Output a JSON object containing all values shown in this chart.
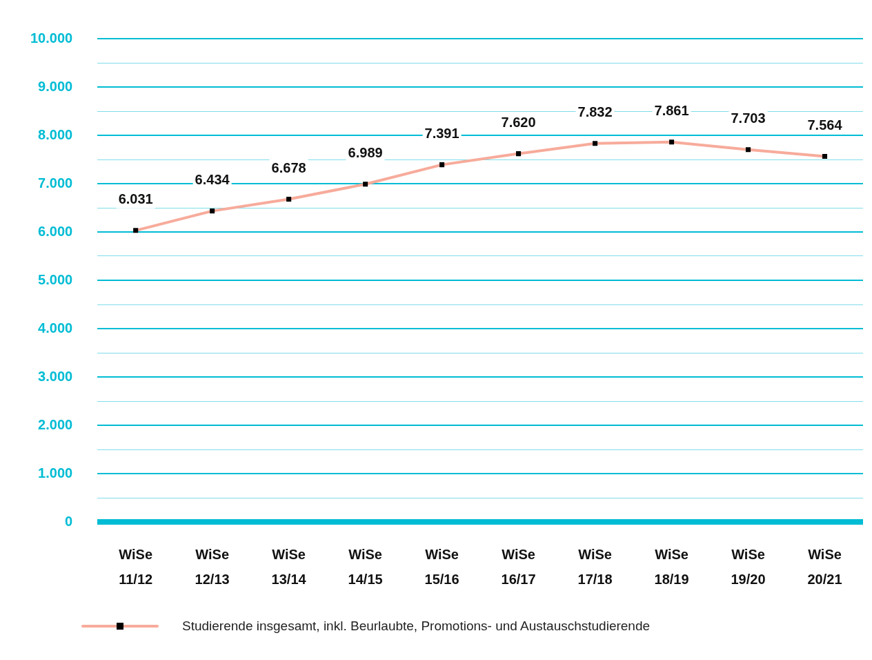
{
  "chart_data": {
    "type": "line",
    "categories": [
      "WiSe 11/12",
      "WiSe 12/13",
      "WiSe 13/14",
      "WiSe 14/15",
      "WiSe 15/16",
      "WiSe 16/17",
      "WiSe 17/18",
      "WiSe 18/19",
      "WiSe 19/20",
      "WiSe 20/21"
    ],
    "series": [
      {
        "name": "Studierende insgesamt, inkl. Beurlaubte, Promotions- und Austauschstudierende",
        "color": "#f7ab9b",
        "values": [
          6031,
          6434,
          6678,
          6989,
          7391,
          7620,
          7832,
          7861,
          7703,
          7564
        ],
        "value_labels": [
          "6.031",
          "6.434",
          "6.678",
          "6.989",
          "7.391",
          "7.620",
          "7.832",
          "7.861",
          "7.703",
          "7.564"
        ]
      }
    ],
    "ylim": [
      0,
      10000
    ],
    "yticks": [
      {
        "value": 0,
        "label": "0"
      },
      {
        "value": 500,
        "label": null
      },
      {
        "value": 1000,
        "label": "1.000"
      },
      {
        "value": 1500,
        "label": null
      },
      {
        "value": 2000,
        "label": "2.000"
      },
      {
        "value": 2500,
        "label": null
      },
      {
        "value": 3000,
        "label": "3.000"
      },
      {
        "value": 3500,
        "label": null
      },
      {
        "value": 4000,
        "label": "4.000"
      },
      {
        "value": 4500,
        "label": null
      },
      {
        "value": 5000,
        "label": "5.000"
      },
      {
        "value": 5500,
        "label": null
      },
      {
        "value": 6000,
        "label": "6.000"
      },
      {
        "value": 6500,
        "label": null
      },
      {
        "value": 7000,
        "label": "7.000"
      },
      {
        "value": 7500,
        "label": null
      },
      {
        "value": 8000,
        "label": "8.000"
      },
      {
        "value": 8500,
        "label": null
      },
      {
        "value": 9000,
        "label": "9.000"
      },
      {
        "value": 9500,
        "label": null
      },
      {
        "value": 10000,
        "label": "10.000"
      }
    ],
    "grid": "y",
    "legend": "bottom left",
    "marker": "square",
    "line_style": "solid"
  }
}
